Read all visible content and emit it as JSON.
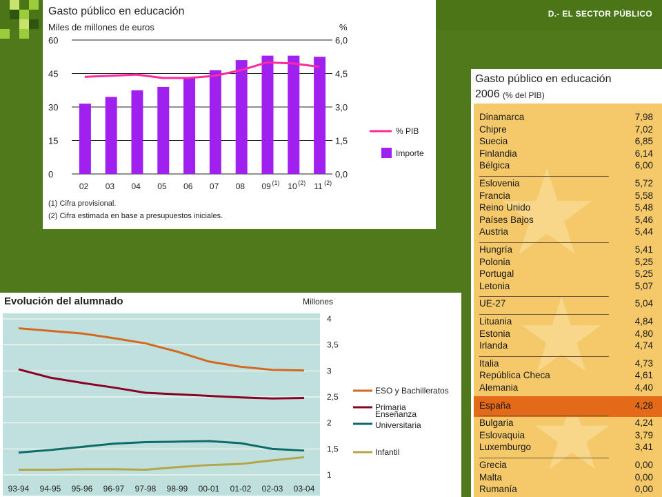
{
  "header": {
    "section_title": "D.- EL SECTOR PÚBLICO"
  },
  "colors": {
    "background": "#4f7a1c",
    "importe": "#a020f0",
    "pib": "#ff2aa0",
    "eso": "#d2691e",
    "primaria": "#8b0026",
    "universitaria": "#0f6b6b",
    "infantil": "#b5a44a",
    "table_bg": "#f5c96a",
    "espana_highlight": "#e46a1a"
  },
  "chart_data": [
    {
      "type": "bar",
      "title": "Gasto público en educación",
      "ylabel": "Miles de millones de euros",
      "y2label": "%",
      "categories": [
        "02",
        "03",
        "04",
        "05",
        "06",
        "07",
        "08",
        "09",
        "10",
        "11"
      ],
      "category_notes": [
        "",
        "",
        "",
        "",
        "",
        "",
        "",
        "(1)",
        "(2)",
        "(2)"
      ],
      "ylim": [
        0,
        60
      ],
      "yticks": [
        "0",
        "15",
        "30",
        "45",
        "60"
      ],
      "y2lim": [
        0,
        6
      ],
      "y2ticks": [
        "0,0",
        "1,5",
        "3,0",
        "4,5",
        "6,0"
      ],
      "series": [
        {
          "name": "Importe",
          "type": "bar",
          "values": [
            31.5,
            34.5,
            37.5,
            39.0,
            43.0,
            46.5,
            51.0,
            53.0,
            53.0,
            52.5
          ]
        },
        {
          "name": "% PIB",
          "type": "line",
          "axis": "y2",
          "values": [
            4.35,
            4.4,
            4.45,
            4.3,
            4.3,
            4.4,
            4.65,
            5.0,
            4.95,
            4.8
          ]
        }
      ],
      "legend": [
        "% PIB",
        "Importe"
      ],
      "notes": [
        "(1) Cifra provisional.",
        "(2) Cifra estimada en base a presupuestos iniciales."
      ]
    },
    {
      "type": "line",
      "title": "Evolución del alumnado",
      "ylabel": "Millones",
      "categories": [
        "93-94",
        "94-95",
        "95-96",
        "96-97",
        "97-98",
        "98-99",
        "00-01",
        "01-02",
        "02-03",
        "03-04"
      ],
      "ylim": [
        1,
        4
      ],
      "yticks": [
        "1",
        "1,5",
        "2",
        "2,5",
        "3",
        "3,5",
        "4"
      ],
      "series": [
        {
          "name": "ESO y Bachilleratos",
          "values": [
            3.82,
            3.77,
            3.72,
            3.63,
            3.53,
            3.37,
            3.18,
            3.08,
            3.02,
            3.01
          ]
        },
        {
          "name": "Primaria",
          "values": [
            3.03,
            2.87,
            2.77,
            2.68,
            2.58,
            2.55,
            2.52,
            2.49,
            2.47,
            2.48
          ]
        },
        {
          "name": "Enseñanza Universitaria",
          "values": [
            1.43,
            1.48,
            1.54,
            1.6,
            1.63,
            1.64,
            1.65,
            1.61,
            1.5,
            1.47
          ]
        },
        {
          "name": "Infantil",
          "values": [
            1.1,
            1.1,
            1.11,
            1.11,
            1.1,
            1.15,
            1.19,
            1.21,
            1.28,
            1.34
          ]
        }
      ],
      "legend": [
        "ESO y Bachilleratos",
        "Primaria",
        "Enseñanza Universitaria",
        "Infantil"
      ]
    },
    {
      "type": "table",
      "title": "Gasto público en educación",
      "subtitle_year": "2006",
      "subtitle_unit": "(% del PIB)",
      "groups": [
        [
          [
            "Dinamarca",
            "7,98"
          ],
          [
            "Chipre",
            "7,02"
          ],
          [
            "Suecia",
            "6,85"
          ],
          [
            "Finlandia",
            "6,14"
          ],
          [
            "Bélgica",
            "6,00"
          ]
        ],
        [
          [
            "Eslovenia",
            "5,72"
          ],
          [
            "Francia",
            "5,58"
          ],
          [
            "Reino Unido",
            "5,48"
          ],
          [
            "Países Bajos",
            "5,46"
          ],
          [
            "Austria",
            "5,44"
          ]
        ],
        [
          [
            "Hungría",
            "5,41"
          ],
          [
            "Polonia",
            "5,25"
          ],
          [
            "Portugal",
            "5,25"
          ],
          [
            "Letonia",
            "5,07"
          ]
        ],
        [
          [
            "UE-27",
            "5,04"
          ]
        ],
        [
          [
            "Lituania",
            "4,84"
          ],
          [
            "Estonia",
            "4,80"
          ],
          [
            "Irlanda",
            "4,74"
          ]
        ],
        [
          [
            "Italia",
            "4,73"
          ],
          [
            "República Checa",
            "4,61"
          ],
          [
            "Alemania",
            "4,40"
          ]
        ],
        [
          [
            "España",
            "4,28"
          ]
        ],
        [
          [
            "Bulgaria",
            "4,24"
          ],
          [
            "Eslovaquia",
            "3,79"
          ],
          [
            "Luxemburgo",
            "3,41"
          ]
        ],
        [
          [
            "Grecia",
            "0,00"
          ],
          [
            "Malta",
            "0,00"
          ],
          [
            "Rumanía",
            "0,00"
          ]
        ]
      ],
      "highlight": "España"
    }
  ]
}
